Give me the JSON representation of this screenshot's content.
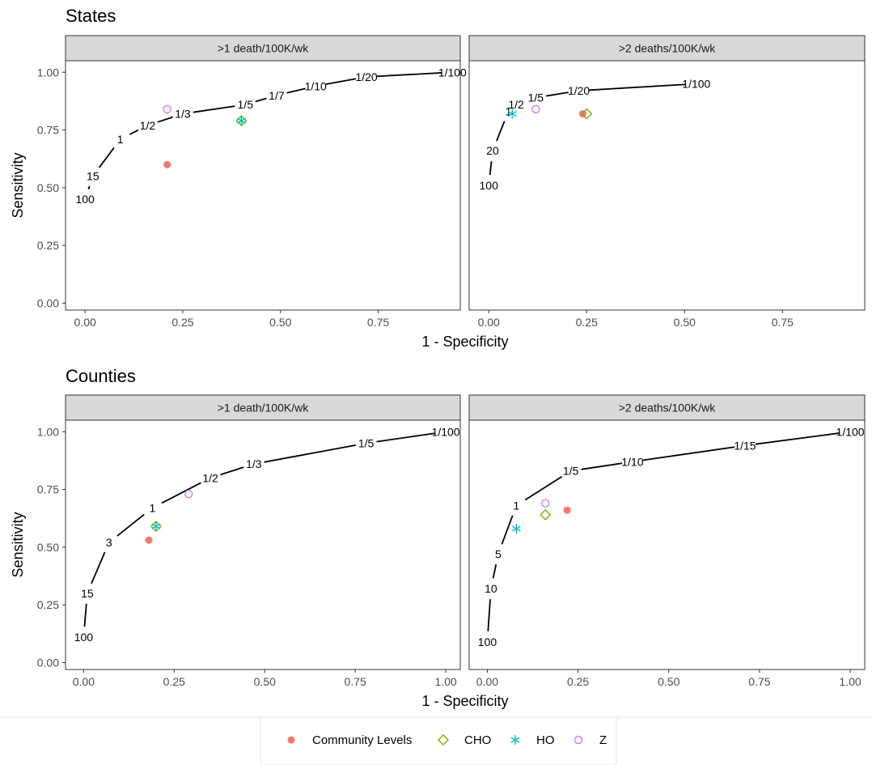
{
  "colors": {
    "Community Levels": "#F8766D",
    "CHO": "#7CAE00",
    "HO": "#00BFC4",
    "Z": "#C77CFF",
    "strip_fill": "#D9D9D9",
    "panel_border": "#333333"
  },
  "legend": {
    "entries": [
      {
        "label": "Community Levels",
        "icon": "filled-circle-icon"
      },
      {
        "label": "CHO",
        "icon": "diamond-icon"
      },
      {
        "label": "HO",
        "icon": "asterisk-icon"
      },
      {
        "label": "Z",
        "icon": "open-circle-icon"
      }
    ]
  },
  "axis": {
    "xlabel": "1 - Specificity",
    "ylabel": "Sensitivity"
  },
  "chart_data": [
    {
      "type": "line",
      "section": "States",
      "panel": ">1 death/100K/wk",
      "xlim": [
        -0.05,
        0.96
      ],
      "ylim": [
        -0.03,
        1.05
      ],
      "x_ticks": [
        "0.00",
        "0.25",
        "0.50",
        "0.75"
      ],
      "y_ticks": [
        "0.00",
        "0.25",
        "0.50",
        "0.75",
        "1.00"
      ],
      "curve": [
        {
          "x": 0.0,
          "y": 0.45,
          "label": "100"
        },
        {
          "x": 0.02,
          "y": 0.55,
          "label": "15"
        },
        {
          "x": 0.09,
          "y": 0.71,
          "label": "1"
        },
        {
          "x": 0.16,
          "y": 0.77,
          "label": "1/2"
        },
        {
          "x": 0.25,
          "y": 0.82,
          "label": "1/3"
        },
        {
          "x": 0.41,
          "y": 0.86,
          "label": "1/5"
        },
        {
          "x": 0.49,
          "y": 0.9,
          "label": "1/7"
        },
        {
          "x": 0.59,
          "y": 0.94,
          "label": "1/10"
        },
        {
          "x": 0.72,
          "y": 0.98,
          "label": "1/20"
        },
        {
          "x": 0.94,
          "y": 1.0,
          "label": "1/100"
        }
      ],
      "points": [
        {
          "series": "Community Levels",
          "x": 0.21,
          "y": 0.6
        },
        {
          "series": "CHO",
          "x": 0.4,
          "y": 0.79
        },
        {
          "series": "HO",
          "x": 0.4,
          "y": 0.79
        },
        {
          "series": "Z",
          "x": 0.21,
          "y": 0.84
        }
      ]
    },
    {
      "type": "line",
      "section": "States",
      "panel": ">2 deaths/100K/wk",
      "xlim": [
        -0.05,
        0.96
      ],
      "ylim": [
        -0.03,
        1.05
      ],
      "x_ticks": [
        "0.00",
        "0.25",
        "0.50",
        "0.75"
      ],
      "y_ticks": [
        "0.00",
        "0.25",
        "0.50",
        "0.75",
        "1.00"
      ],
      "curve": [
        {
          "x": 0.0,
          "y": 0.51,
          "label": "100"
        },
        {
          "x": 0.01,
          "y": 0.66,
          "label": "20"
        },
        {
          "x": 0.05,
          "y": 0.83,
          "label": "1"
        },
        {
          "x": 0.07,
          "y": 0.86,
          "label": "1/2"
        },
        {
          "x": 0.12,
          "y": 0.89,
          "label": "1/5"
        },
        {
          "x": 0.23,
          "y": 0.92,
          "label": "1/20"
        },
        {
          "x": 0.53,
          "y": 0.95,
          "label": "1/100"
        }
      ],
      "points": [
        {
          "series": "Community Levels",
          "x": 0.24,
          "y": 0.82
        },
        {
          "series": "CHO",
          "x": 0.25,
          "y": 0.82
        },
        {
          "series": "HO",
          "x": 0.06,
          "y": 0.82
        },
        {
          "series": "Z",
          "x": 0.12,
          "y": 0.84
        }
      ]
    },
    {
      "type": "line",
      "section": "Counties",
      "panel": ">1 death/100K/wk",
      "xlim": [
        -0.05,
        1.04
      ],
      "ylim": [
        -0.03,
        1.05
      ],
      "x_ticks": [
        "0.00",
        "0.25",
        "0.50",
        "0.75",
        "1.00"
      ],
      "y_ticks": [
        "0.00",
        "0.25",
        "0.50",
        "0.75",
        "1.00"
      ],
      "curve": [
        {
          "x": 0.0,
          "y": 0.11,
          "label": "100"
        },
        {
          "x": 0.01,
          "y": 0.3,
          "label": "15"
        },
        {
          "x": 0.07,
          "y": 0.52,
          "label": "3"
        },
        {
          "x": 0.19,
          "y": 0.67,
          "label": "1"
        },
        {
          "x": 0.35,
          "y": 0.8,
          "label": "1/2"
        },
        {
          "x": 0.47,
          "y": 0.86,
          "label": "1/3"
        },
        {
          "x": 0.78,
          "y": 0.95,
          "label": "1/5"
        },
        {
          "x": 1.0,
          "y": 1.0,
          "label": "1/100"
        }
      ],
      "points": [
        {
          "series": "Community Levels",
          "x": 0.18,
          "y": 0.53
        },
        {
          "series": "CHO",
          "x": 0.2,
          "y": 0.59
        },
        {
          "series": "HO",
          "x": 0.2,
          "y": 0.59
        },
        {
          "series": "Z",
          "x": 0.29,
          "y": 0.73
        }
      ]
    },
    {
      "type": "line",
      "section": "Counties",
      "panel": ">2 deaths/100K/wk",
      "xlim": [
        -0.05,
        1.04
      ],
      "ylim": [
        -0.03,
        1.05
      ],
      "x_ticks": [
        "0.00",
        "0.25",
        "0.50",
        "0.75",
        "1.00"
      ],
      "y_ticks": [
        "0.00",
        "0.25",
        "0.50",
        "0.75",
        "1.00"
      ],
      "curve": [
        {
          "x": 0.0,
          "y": 0.09,
          "label": "100"
        },
        {
          "x": 0.01,
          "y": 0.32,
          "label": "10"
        },
        {
          "x": 0.03,
          "y": 0.47,
          "label": "5"
        },
        {
          "x": 0.08,
          "y": 0.68,
          "label": "1"
        },
        {
          "x": 0.23,
          "y": 0.83,
          "label": "1/5"
        },
        {
          "x": 0.4,
          "y": 0.87,
          "label": "1/10"
        },
        {
          "x": 0.71,
          "y": 0.94,
          "label": "1/15"
        },
        {
          "x": 1.0,
          "y": 1.0,
          "label": "1/100"
        }
      ],
      "points": [
        {
          "series": "Community Levels",
          "x": 0.22,
          "y": 0.66
        },
        {
          "series": "CHO",
          "x": 0.16,
          "y": 0.64
        },
        {
          "series": "HO",
          "x": 0.08,
          "y": 0.58
        },
        {
          "series": "Z",
          "x": 0.16,
          "y": 0.69
        }
      ]
    }
  ]
}
